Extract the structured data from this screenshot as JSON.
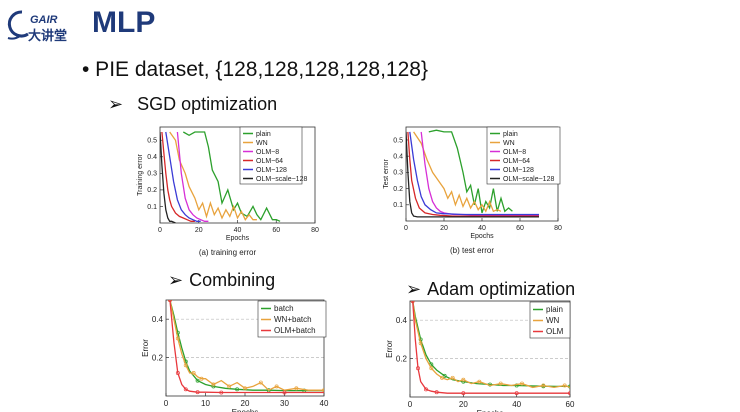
{
  "header": {
    "logo_text": "GAIR 大讲堂",
    "title": "MLP"
  },
  "bullet": "• PIE dataset, {128,128,128,128,128}",
  "sections": {
    "sgd": "SGD optimization",
    "combining": "Combining",
    "adam": "Adam optimization"
  },
  "icons": {
    "bullet_arrow": "➢"
  },
  "chart_data": [
    {
      "id": "sgd-train",
      "type": "line",
      "caption": "(a)  training error",
      "xlabel": "Epochs",
      "ylabel": "Training error",
      "xlim": [
        0,
        80
      ],
      "ylim": [
        0,
        0.58
      ],
      "xticks": [
        0,
        20,
        40,
        60,
        80
      ],
      "yticks": [
        0.1,
        0.2,
        0.3,
        0.4,
        0.5
      ],
      "grid": false,
      "legend": "top-right",
      "series": [
        {
          "name": "plain",
          "color": "#2ca02c",
          "x": [
            12,
            15,
            18,
            21,
            23,
            25,
            27,
            30,
            32,
            35,
            38,
            40,
            42,
            45,
            48,
            50,
            52,
            55,
            58,
            60,
            62
          ],
          "y": [
            0.55,
            0.53,
            0.55,
            0.55,
            0.55,
            0.46,
            0.32,
            0.25,
            0.12,
            0.2,
            0.08,
            0.12,
            0.06,
            0.04,
            0.1,
            0.05,
            0.02,
            0.09,
            0.02,
            0.02,
            0.01
          ]
        },
        {
          "name": "WN",
          "color": "#e8a33d",
          "x": [
            5,
            8,
            10,
            13,
            15,
            18,
            20,
            22,
            24,
            26,
            28,
            30,
            32,
            34,
            36,
            38,
            40,
            42,
            44,
            46,
            48,
            50
          ],
          "y": [
            0.55,
            0.5,
            0.38,
            0.3,
            0.22,
            0.15,
            0.08,
            0.12,
            0.04,
            0.12,
            0.05,
            0.09,
            0.03,
            0.08,
            0.04,
            0.1,
            0.03,
            0.07,
            0.02,
            0.05,
            0.02,
            0.02
          ]
        },
        {
          "name": "OLM−8",
          "color": "#d62fd6",
          "x": [
            9,
            11,
            13,
            15,
            17,
            19,
            21,
            23,
            25
          ],
          "y": [
            0.55,
            0.3,
            0.15,
            0.08,
            0.05,
            0.03,
            0.02,
            0.01,
            0.01
          ]
        },
        {
          "name": "OLM−64",
          "color": "#d62728",
          "x": [
            1,
            2,
            3,
            4,
            5,
            6,
            8,
            10,
            12,
            14,
            16,
            18
          ],
          "y": [
            0.55,
            0.42,
            0.3,
            0.2,
            0.14,
            0.1,
            0.06,
            0.04,
            0.03,
            0.02,
            0.01,
            0.01
          ]
        },
        {
          "name": "OLM−128",
          "color": "#3b3bd6",
          "x": [
            3,
            5,
            7,
            9,
            11,
            13,
            15,
            17,
            19,
            21
          ],
          "y": [
            0.55,
            0.4,
            0.25,
            0.14,
            0.08,
            0.05,
            0.03,
            0.02,
            0.01,
            0.01
          ]
        },
        {
          "name": "OLM−scale−128",
          "color": "#222222",
          "x": [
            0,
            1,
            2,
            3,
            4,
            5,
            6,
            8
          ],
          "y": [
            0.55,
            0.35,
            0.18,
            0.08,
            0.03,
            0.01,
            0.01,
            0.0
          ]
        }
      ]
    },
    {
      "id": "sgd-test",
      "type": "line",
      "caption": "(b)  test error",
      "xlabel": "Epochs",
      "ylabel": "Test error",
      "xlim": [
        0,
        80
      ],
      "ylim": [
        0,
        0.58
      ],
      "xticks": [
        0,
        20,
        40,
        60,
        80
      ],
      "yticks": [
        0.1,
        0.2,
        0.3,
        0.4,
        0.5
      ],
      "grid": false,
      "legend": "top-right",
      "series": [
        {
          "name": "plain",
          "color": "#2ca02c",
          "x": [
            12,
            16,
            20,
            24,
            27,
            30,
            32,
            34,
            36,
            38,
            40,
            42,
            44,
            46,
            48,
            50,
            52,
            54,
            56
          ],
          "y": [
            0.55,
            0.56,
            0.55,
            0.55,
            0.45,
            0.3,
            0.18,
            0.22,
            0.1,
            0.2,
            0.05,
            0.12,
            0.08,
            0.2,
            0.06,
            0.14,
            0.06,
            0.08,
            0.06
          ]
        },
        {
          "name": "WN",
          "color": "#e8a33d",
          "x": [
            4,
            8,
            11,
            14,
            17,
            20,
            22,
            24,
            26,
            28,
            30,
            32,
            34,
            36,
            38,
            40,
            42,
            44,
            46,
            48,
            50
          ],
          "y": [
            0.55,
            0.48,
            0.38,
            0.3,
            0.25,
            0.2,
            0.14,
            0.18,
            0.1,
            0.16,
            0.09,
            0.14,
            0.08,
            0.12,
            0.07,
            0.1,
            0.06,
            0.12,
            0.06,
            0.07,
            0.06
          ]
        },
        {
          "name": "OLM−8",
          "color": "#d62fd6",
          "x": [
            8,
            10,
            12,
            14,
            16,
            18,
            20,
            25,
            30,
            40,
            50,
            60,
            70
          ],
          "y": [
            0.55,
            0.35,
            0.2,
            0.12,
            0.08,
            0.06,
            0.05,
            0.04,
            0.04,
            0.035,
            0.035,
            0.035,
            0.035
          ]
        },
        {
          "name": "OLM−64",
          "color": "#d62728",
          "x": [
            1,
            2,
            3,
            5,
            7,
            10,
            14,
            18,
            25,
            35,
            50,
            70
          ],
          "y": [
            0.55,
            0.38,
            0.25,
            0.14,
            0.08,
            0.05,
            0.04,
            0.035,
            0.03,
            0.03,
            0.03,
            0.03
          ]
        },
        {
          "name": "OLM−128",
          "color": "#3b3bd6",
          "x": [
            2,
            4,
            6,
            8,
            10,
            13,
            16,
            20,
            30,
            40,
            55,
            70
          ],
          "y": [
            0.55,
            0.38,
            0.25,
            0.15,
            0.1,
            0.07,
            0.05,
            0.045,
            0.04,
            0.04,
            0.04,
            0.04
          ]
        },
        {
          "name": "OLM−scale−128",
          "color": "#222222",
          "x": [
            0,
            1,
            2,
            3,
            4,
            6,
            10,
            20,
            40,
            70
          ],
          "y": [
            0.55,
            0.3,
            0.12,
            0.05,
            0.03,
            0.025,
            0.025,
            0.025,
            0.025,
            0.025
          ]
        }
      ]
    },
    {
      "id": "combining",
      "type": "line",
      "caption": "",
      "xlabel": "Epochs",
      "ylabel": "Error",
      "xlim": [
        0,
        40
      ],
      "ylim": [
        0,
        0.5
      ],
      "xticks": [
        0,
        10,
        20,
        30,
        40
      ],
      "yticks": [
        0.2,
        0.4
      ],
      "grid": true,
      "legend": "top-right",
      "series": [
        {
          "name": "batch",
          "color": "#2ca02c",
          "x": [
            1,
            2,
            3,
            4,
            5,
            6,
            8,
            10,
            12,
            15,
            18,
            22,
            26,
            30,
            35,
            40
          ],
          "y": [
            0.5,
            0.42,
            0.33,
            0.25,
            0.18,
            0.13,
            0.08,
            0.06,
            0.05,
            0.04,
            0.035,
            0.03,
            0.03,
            0.028,
            0.028,
            0.028
          ]
        },
        {
          "name": "WN+batch",
          "color": "#e8a33d",
          "x": [
            1,
            2,
            3,
            4,
            5,
            6,
            7,
            8,
            9,
            10,
            12,
            14,
            16,
            18,
            20,
            22,
            24,
            26,
            28,
            30,
            33,
            36,
            40
          ],
          "y": [
            0.5,
            0.4,
            0.3,
            0.22,
            0.16,
            0.12,
            0.12,
            0.1,
            0.09,
            0.09,
            0.06,
            0.08,
            0.05,
            0.07,
            0.04,
            0.05,
            0.07,
            0.03,
            0.05,
            0.03,
            0.04,
            0.03,
            0.03
          ]
        },
        {
          "name": "OLM+batch",
          "color": "#e8383d",
          "x": [
            1,
            2,
            3,
            4,
            5,
            6,
            8,
            10,
            14,
            20,
            30,
            40
          ],
          "y": [
            0.5,
            0.28,
            0.12,
            0.06,
            0.035,
            0.025,
            0.02,
            0.02,
            0.018,
            0.018,
            0.018,
            0.018
          ]
        }
      ]
    },
    {
      "id": "adam",
      "type": "line",
      "caption": "",
      "xlabel": "Epochs",
      "ylabel": "Error",
      "xlim": [
        0,
        60
      ],
      "ylim": [
        0,
        0.5
      ],
      "xticks": [
        0,
        20,
        40,
        60
      ],
      "yticks": [
        0.2,
        0.4
      ],
      "grid": true,
      "legend": "top-right",
      "series": [
        {
          "name": "plain",
          "color": "#2ca02c",
          "x": [
            1,
            2,
            4,
            6,
            8,
            10,
            13,
            16,
            20,
            25,
            30,
            35,
            40,
            45,
            50,
            55,
            60
          ],
          "y": [
            0.5,
            0.42,
            0.3,
            0.22,
            0.17,
            0.14,
            0.11,
            0.09,
            0.08,
            0.07,
            0.065,
            0.06,
            0.06,
            0.058,
            0.056,
            0.055,
            0.055
          ]
        },
        {
          "name": "WN",
          "color": "#e8a33d",
          "x": [
            1,
            2,
            4,
            6,
            8,
            10,
            12,
            14,
            16,
            18,
            20,
            23,
            26,
            30,
            34,
            38,
            42,
            46,
            50,
            54,
            58,
            60
          ],
          "y": [
            0.5,
            0.4,
            0.28,
            0.2,
            0.15,
            0.12,
            0.1,
            0.09,
            0.1,
            0.08,
            0.09,
            0.07,
            0.08,
            0.06,
            0.07,
            0.06,
            0.07,
            0.05,
            0.06,
            0.05,
            0.06,
            0.05
          ]
        },
        {
          "name": "OLM",
          "color": "#e8383d",
          "x": [
            1,
            2,
            3,
            4,
            6,
            8,
            10,
            14,
            20,
            30,
            40,
            50,
            60
          ],
          "y": [
            0.5,
            0.3,
            0.15,
            0.08,
            0.04,
            0.03,
            0.025,
            0.02,
            0.02,
            0.02,
            0.02,
            0.02,
            0.02
          ]
        }
      ]
    }
  ]
}
